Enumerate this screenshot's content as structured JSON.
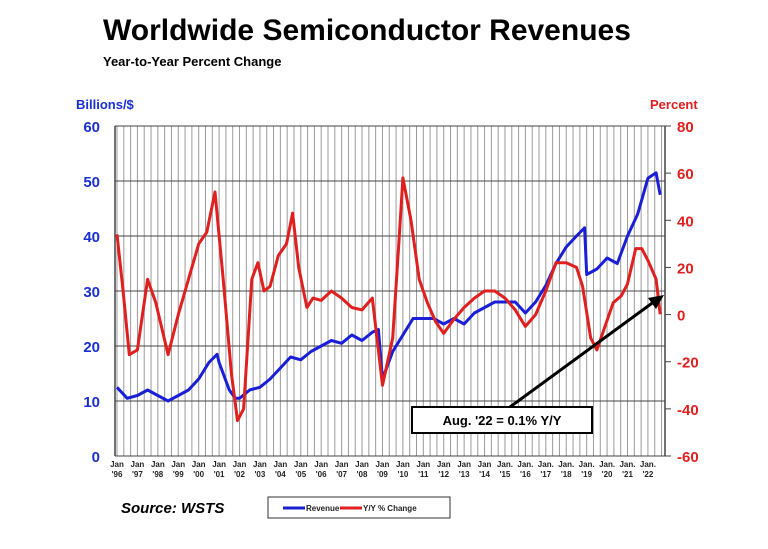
{
  "chart_data": {
    "type": "line",
    "title": "Worldwide Semiconductor Revenues",
    "subtitle": "Year-to-Year Percent Change",
    "ylabel_left": "Billions/$",
    "ylabel_right": "Percent",
    "ylim_left": [
      0,
      60
    ],
    "yticks_left": [
      "0",
      "10",
      "20",
      "30",
      "40",
      "50",
      "60"
    ],
    "ylim_right": [
      -60,
      80
    ],
    "yticks_right": [
      "-60",
      "-40",
      "-20",
      "0",
      "20",
      "40",
      "60",
      "80"
    ],
    "xlim": [
      1996,
      2022.7
    ],
    "xtick_labels": [
      [
        "Jan",
        "'96"
      ],
      [
        "Jan",
        "'97"
      ],
      [
        "Jan",
        "'98"
      ],
      [
        "Jan",
        "'99"
      ],
      [
        "Jan",
        "'00"
      ],
      [
        "Jan",
        "'01"
      ],
      [
        "Jan",
        "'02"
      ],
      [
        "Jan",
        "'03"
      ],
      [
        "Jan",
        "'04"
      ],
      [
        "Jan",
        "'05"
      ],
      [
        "Jan",
        "'06"
      ],
      [
        "Jan",
        "'07"
      ],
      [
        "Jan",
        "'08"
      ],
      [
        "Jan",
        "'09"
      ],
      [
        "Jan",
        "'10"
      ],
      [
        "Jan",
        "'11"
      ],
      [
        "Jan",
        "'12"
      ],
      [
        "Jan",
        "'13"
      ],
      [
        "Jan",
        "'14"
      ],
      [
        "Jan.",
        "'15"
      ],
      [
        "Jan.",
        "'16"
      ],
      [
        "Jan.",
        "'17"
      ],
      [
        "Jan.",
        "'18"
      ],
      [
        "Jan.",
        "'19"
      ],
      [
        "Jan.",
        "'20"
      ],
      [
        "Jan.",
        "'21"
      ],
      [
        "Jan.",
        "'22"
      ]
    ],
    "grid": true,
    "legend_position": "bottom",
    "series": [
      {
        "name": "Revenue",
        "axis": "left",
        "color": "#1a1fd6",
        "x": [
          1996,
          1996.5,
          1997,
          1997.5,
          1998,
          1998.5,
          1999,
          1999.5,
          2000,
          2000.5,
          2000.9,
          2001,
          2001.5,
          2001.8,
          2002,
          2002.5,
          2003,
          2003.5,
          2004,
          2004.5,
          2005,
          2005.5,
          2006,
          2006.5,
          2007,
          2007.5,
          2008,
          2008.5,
          2008.8,
          2009,
          2009.5,
          2010,
          2010.5,
          2011,
          2011.5,
          2012,
          2012.5,
          2013,
          2013.5,
          2014,
          2014.5,
          2015,
          2015.5,
          2016,
          2016.5,
          2017,
          2017.5,
          2018,
          2018.5,
          2018.9,
          2019,
          2019.5,
          2020,
          2020.5,
          2021,
          2021.5,
          2022,
          2022.4,
          2022.6
        ],
        "y": [
          12.5,
          10.5,
          11,
          12,
          11,
          10,
          11,
          12,
          14,
          17,
          18.5,
          17,
          12,
          10.5,
          10.5,
          12,
          12.5,
          14,
          16,
          18,
          17.5,
          19,
          20,
          21,
          20.5,
          22,
          21,
          22.5,
          23,
          14,
          19,
          22,
          25,
          25,
          25,
          24,
          25,
          24,
          26,
          27,
          28,
          28,
          28,
          26,
          28,
          31,
          35,
          38,
          40,
          41.5,
          33,
          34,
          36,
          35,
          40,
          44,
          50.5,
          51.5,
          47.5
        ]
      },
      {
        "name": "Y/Y % Change",
        "axis": "right",
        "color": "#e01f1f",
        "x": [
          1996,
          1996.3,
          1996.6,
          1997,
          1997.5,
          1997.9,
          1998.5,
          1999,
          1999.5,
          2000,
          2000.4,
          2000.8,
          2001.2,
          2001.6,
          2001.9,
          2002.2,
          2002.6,
          2002.9,
          2003.2,
          2003.5,
          2003.9,
          2004.3,
          2004.6,
          2004.9,
          2005.3,
          2005.6,
          2006,
          2006.5,
          2007,
          2007.5,
          2008,
          2008.5,
          2009,
          2009.5,
          2009.8,
          2010,
          2010.4,
          2010.8,
          2011.2,
          2011.6,
          2012,
          2012.5,
          2013,
          2013.5,
          2014,
          2014.5,
          2015,
          2015.5,
          2016,
          2016.5,
          2017,
          2017.5,
          2018,
          2018.5,
          2018.8,
          2019.2,
          2019.5,
          2019.9,
          2020.3,
          2020.7,
          2021,
          2021.4,
          2021.7,
          2022,
          2022.4,
          2022.6
        ],
        "y": [
          34,
          10,
          -17,
          -15,
          15,
          5,
          -17,
          0,
          15,
          30,
          35,
          52,
          15,
          -25,
          -45,
          -40,
          15,
          22,
          10,
          12,
          25,
          30,
          43,
          20,
          3,
          7,
          6,
          10,
          7,
          3,
          2,
          7,
          -30,
          -10,
          30,
          58,
          40,
          15,
          5,
          -3,
          -8,
          -2,
          3,
          7,
          10,
          10,
          7,
          2,
          -5,
          0,
          10,
          22,
          22,
          20,
          12,
          -10,
          -15,
          -5,
          5,
          8,
          13,
          28,
          28,
          23,
          15,
          0.1
        ]
      }
    ],
    "annotation": "Aug. '22 = 0.1% Y/Y",
    "source": "Source: WSTS"
  }
}
